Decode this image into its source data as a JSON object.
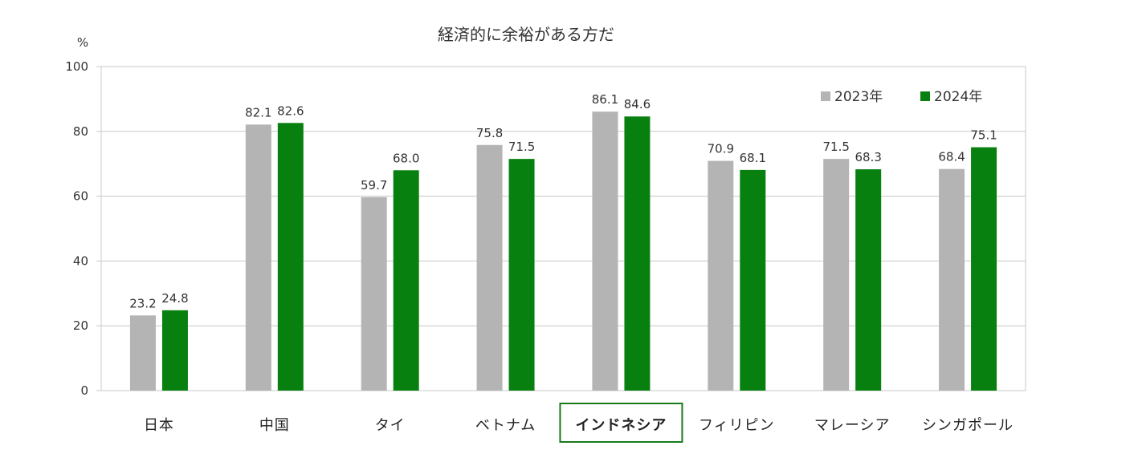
{
  "chart_data": {
    "type": "bar",
    "title": "経済的に余裕がある方だ",
    "ylabel": "%",
    "xlabel": "",
    "ylim": [
      0,
      100
    ],
    "yticks": [
      0,
      20,
      40,
      60,
      80,
      100
    ],
    "grid": true,
    "legend_position": "top-right",
    "categories": [
      "日本",
      "中国",
      "タイ",
      "ベトナム",
      "インドネシア",
      "フィリピン",
      "マレーシア",
      "シンガポール"
    ],
    "highlighted_category": "インドネシア",
    "series": [
      {
        "name": "2023年",
        "color": "#b4b4b4",
        "values": [
          23.2,
          82.1,
          59.7,
          75.8,
          86.1,
          70.9,
          71.5,
          68.4
        ]
      },
      {
        "name": "2024年",
        "color": "#088010",
        "values": [
          24.8,
          82.6,
          68.0,
          71.5,
          84.6,
          68.1,
          68.3,
          75.1
        ]
      }
    ],
    "highlight_color": "#1a7a1a"
  }
}
